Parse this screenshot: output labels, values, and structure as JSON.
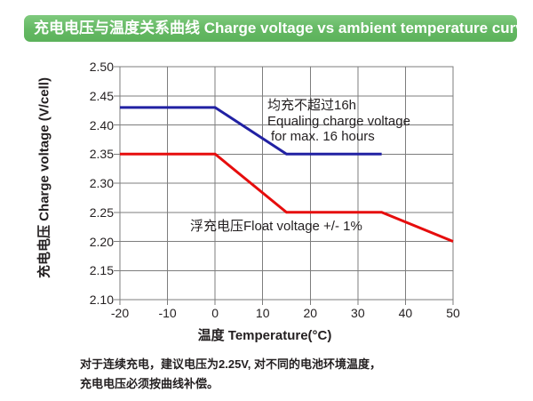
{
  "header": {
    "title": "充电电压与温度关系曲线 Charge voltage vs ambient temperature curve"
  },
  "chart_data": {
    "type": "line",
    "title": "",
    "xlabel": "温度 Temperature(°C)",
    "ylabel": "充电电压 Charge voltage (V/cell)",
    "xlim": [
      -20,
      50
    ],
    "ylim": [
      2.1,
      2.5
    ],
    "x_ticks": [
      -20,
      -10,
      0,
      10,
      20,
      30,
      40,
      50
    ],
    "x_tick_labels": [
      "-20",
      "-10",
      "0",
      "10",
      "20",
      "30",
      "40",
      "50"
    ],
    "y_ticks": [
      2.5,
      2.45,
      2.4,
      2.35,
      2.3,
      2.25,
      2.2,
      2.15,
      2.1
    ],
    "y_tick_labels": [
      "2.50",
      "2.45",
      "2.40",
      "2.35",
      "2.30",
      "2.25",
      "2.20",
      "2.15",
      "2.10"
    ],
    "grid": true,
    "legend_position": "none",
    "series": [
      {
        "name": "equalizing-charge-voltage",
        "color": "#2121a3",
        "points": [
          [
            -20,
            2.43
          ],
          [
            0,
            2.43
          ],
          [
            15,
            2.35
          ],
          [
            35,
            2.35
          ]
        ]
      },
      {
        "name": "float-charge-voltage",
        "color": "#e60d0d",
        "points": [
          [
            -20,
            2.35
          ],
          [
            0,
            2.35
          ],
          [
            15,
            2.25
          ],
          [
            35,
            2.25
          ],
          [
            50,
            2.2
          ]
        ]
      }
    ],
    "annotations": [
      {
        "id": "equalize-note",
        "lines": [
          "均充不超过16h",
          "Equaling charge voltage",
          "for max. 16 hours"
        ]
      },
      {
        "id": "float-note",
        "lines": [
          "浮充电压Float voltage +/- 1%"
        ]
      }
    ]
  },
  "footnote": {
    "line1": "对于连续充电，建议电压为2.25V, 对不同的电池环境温度，",
    "line2": "充电电压必须按曲线补偿。"
  },
  "colors": {
    "header_bg": "#66bb66",
    "grid": "#7d7d7d",
    "axis_text": "#231f20",
    "line_blue": "#2121a3",
    "line_red": "#e60d0d"
  }
}
